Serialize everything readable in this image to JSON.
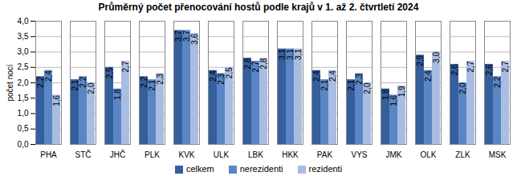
{
  "chart_data": {
    "type": "bar",
    "title": "Průměrný  počet přenocování hostů podle krajů v 1. až 2. čtvrtletí 2024",
    "y_label": "počet nocí",
    "categories": [
      "PHA",
      "STČ",
      "JHČ",
      "PLK",
      "KVK",
      "ULK",
      "LBK",
      "HKK",
      "PAK",
      "VYS",
      "JMK",
      "OLK",
      "ZLK",
      "MSK"
    ],
    "series": [
      {
        "name": "celkem",
        "color": "#355e9d",
        "values": [
          2.2,
          2.1,
          2.5,
          2.2,
          3.7,
          2.4,
          2.8,
          3.1,
          2.4,
          2.1,
          1.8,
          2.9,
          2.6,
          2.6
        ],
        "value_labels": [
          "2,2",
          "2,1",
          "2,5",
          "2,2",
          "3,7",
          "2,4",
          "2,8",
          "3,1",
          "2,4",
          "2,1",
          "1,8",
          "2,9",
          "2,6",
          "2,6"
        ]
      },
      {
        "name": "nerezidenti",
        "color": "#5b86c5",
        "values": [
          2.4,
          2.2,
          1.8,
          2.1,
          3.7,
          2.3,
          2.7,
          3.1,
          2.1,
          2.3,
          1.6,
          2.4,
          2.0,
          2.2
        ],
        "value_labels": [
          "2,4",
          "2,2",
          "1,8",
          "2,1",
          "3,7",
          "2,3",
          "2,7",
          "3,1",
          "2,1",
          "2,3",
          "1,6",
          "2,4",
          "2,0",
          "2,2"
        ]
      },
      {
        "name": "rezidenti",
        "color": "#a9bde3",
        "values": [
          1.6,
          2.0,
          2.7,
          2.3,
          3.6,
          2.5,
          2.8,
          3.1,
          2.4,
          2.0,
          1.9,
          3.0,
          2.7,
          2.7
        ],
        "value_labels": [
          "1,6",
          "2,0",
          "2,7",
          "2,3",
          "3,6",
          "2,5",
          "2,8",
          "3,1",
          "2,4",
          "2,0",
          "1,9",
          "3,0",
          "2,7",
          "2,7"
        ]
      }
    ],
    "ylim": [
      0,
      4
    ],
    "yticks": [
      {
        "value": 0,
        "label": "0,0"
      },
      {
        "value": 0.5,
        "label": "0,5"
      },
      {
        "value": 1,
        "label": "1,0"
      },
      {
        "value": 1.5,
        "label": "1,5"
      },
      {
        "value": 2,
        "label": "2,0"
      },
      {
        "value": 2.5,
        "label": "2,5"
      },
      {
        "value": 3,
        "label": "3,0"
      },
      {
        "value": 3.5,
        "label": "3,5"
      },
      {
        "value": 4,
        "label": "4,0"
      }
    ],
    "grid": true,
    "data_labels": true,
    "legend": "bottom"
  }
}
